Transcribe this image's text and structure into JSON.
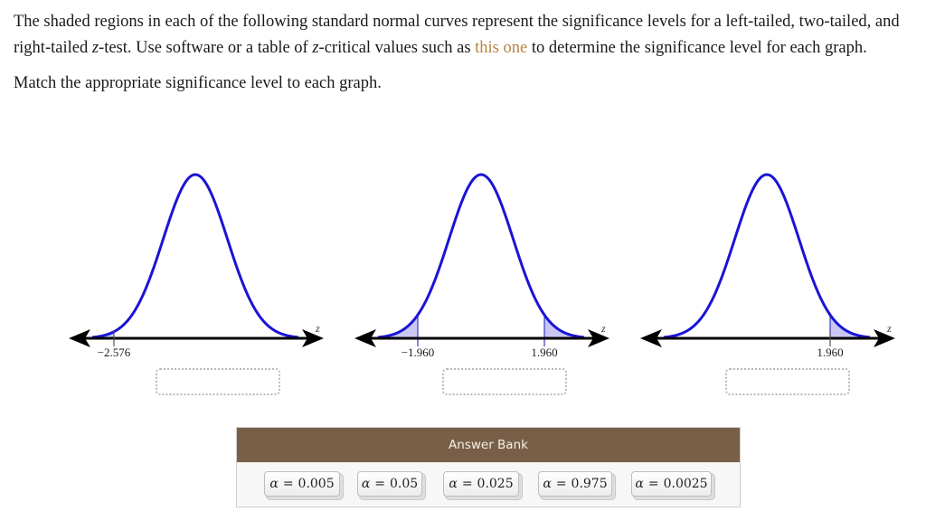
{
  "question": {
    "paragraph1_part1": "The shaded regions in each of the following standard normal curves represent the significance levels for a left-tailed, two-tailed, and right-tailed ",
    "z_var": "z",
    "paragraph1_part2": "-test. Use software or a table of ",
    "paragraph1_part3": "-critical values such as ",
    "link_text": "this one",
    "paragraph1_part4": " to determine the significance level for each graph.",
    "paragraph2": "Match the appropriate significance level to each graph."
  },
  "colors": {
    "curve": "#1a14d6",
    "shade": "#c9c8f5",
    "axis": "#000000",
    "link": "#b58540",
    "bank_header": "#7a5f48"
  },
  "graphs": [
    {
      "type": "left-tailed",
      "axis_label": "z",
      "ticks": [
        "−2.576"
      ],
      "answer": ""
    },
    {
      "type": "two-tailed",
      "axis_label": "z",
      "ticks": [
        "−1.960",
        "1.960"
      ],
      "answer": ""
    },
    {
      "type": "right-tailed",
      "axis_label": "z",
      "ticks": [
        "1.960"
      ],
      "answer": ""
    }
  ],
  "answer_bank": {
    "title": "Answer Bank",
    "items": [
      {
        "symbol": "α",
        "eq": "=",
        "value": "0.005"
      },
      {
        "symbol": "α",
        "eq": "=",
        "value": "0.05"
      },
      {
        "symbol": "α",
        "eq": "=",
        "value": "0.025"
      },
      {
        "symbol": "α",
        "eq": "=",
        "value": "0.975"
      },
      {
        "symbol": "α",
        "eq": "=",
        "value": "0.0025"
      }
    ]
  },
  "chart_data": [
    {
      "type": "area",
      "title": "Left-tailed standard normal curve",
      "xlabel": "z",
      "critical_values": [
        -2.576
      ],
      "shaded": "left tail (z < -2.576)"
    },
    {
      "type": "area",
      "title": "Two-tailed standard normal curve",
      "xlabel": "z",
      "critical_values": [
        -1.96,
        1.96
      ],
      "shaded": "both tails (z < -1.960, z > 1.960)"
    },
    {
      "type": "area",
      "title": "Right-tailed standard normal curve",
      "xlabel": "z",
      "critical_values": [
        1.96
      ],
      "shaded": "right tail (z > 1.960)"
    }
  ]
}
